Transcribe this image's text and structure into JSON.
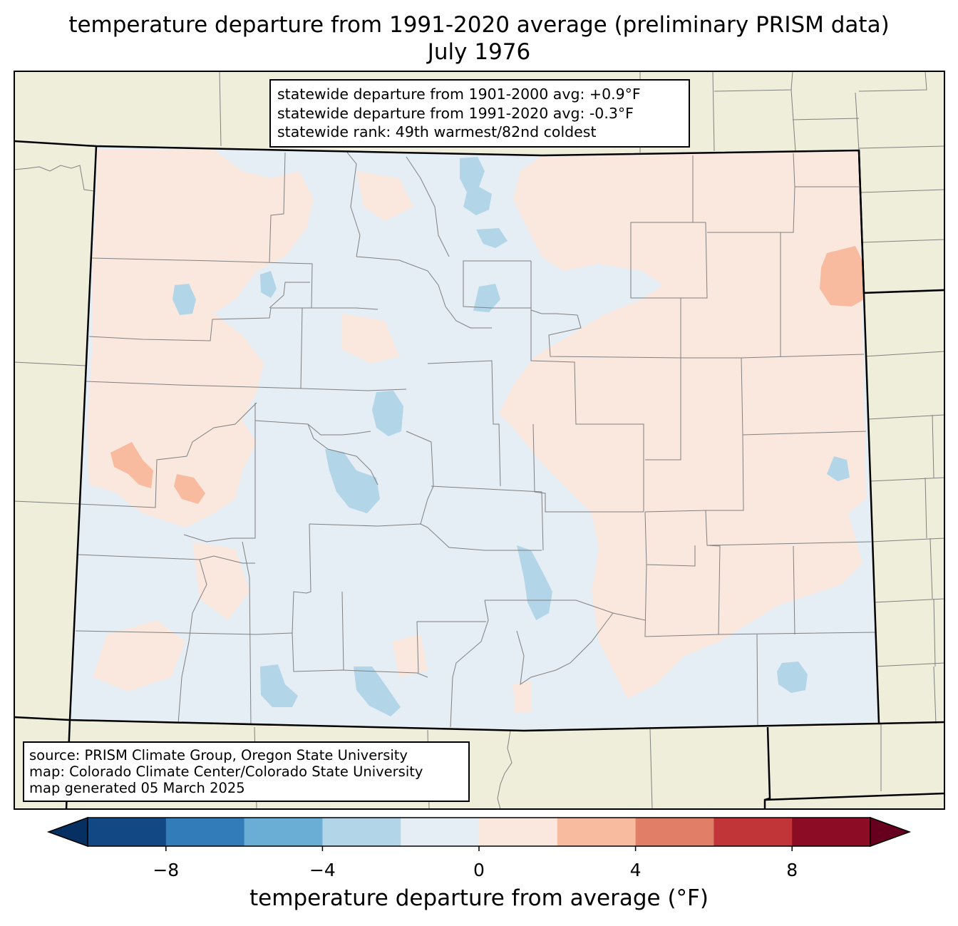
{
  "title": {
    "line1": "temperature departure from 1991-2020 average (preliminary PRISM data)",
    "line2": "July 1976"
  },
  "stats": {
    "line1": "statewide departure from 1901-2000 avg: +0.9°F",
    "line2": "statewide departure from 1991-2020 avg: -0.3°F",
    "line3": "statewide rank: 49th warmest/82nd coldest"
  },
  "source": {
    "line1": "source: PRISM Climate Group, Oregon State University",
    "line2": "map: Colorado Climate Center/Colorado State University",
    "line3": "map generated 05 March 2025"
  },
  "colorbar": {
    "label": "temperature departure from average (°F)",
    "bounds": [
      -10,
      -8,
      -6,
      -4,
      -2,
      0,
      2,
      4,
      6,
      8,
      10
    ],
    "ticks": [
      -8,
      -4,
      0,
      4,
      8
    ],
    "tick_labels": [
      "−8",
      "−4",
      "0",
      "4",
      "8"
    ],
    "colors": [
      "#124984",
      "#327cb9",
      "#6aadd5",
      "#b2d5e8",
      "#e5edf5",
      "#fae8df",
      "#f8bba0",
      "#e17e67",
      "#c13539",
      "#8c0c25"
    ],
    "under_color": "#053061",
    "over_color": "#67001f"
  },
  "colors": {
    "land_outside": "#efeedb",
    "state_base": "#e5edf5",
    "county_lines": "#808080",
    "state_lines": "#000000"
  }
}
